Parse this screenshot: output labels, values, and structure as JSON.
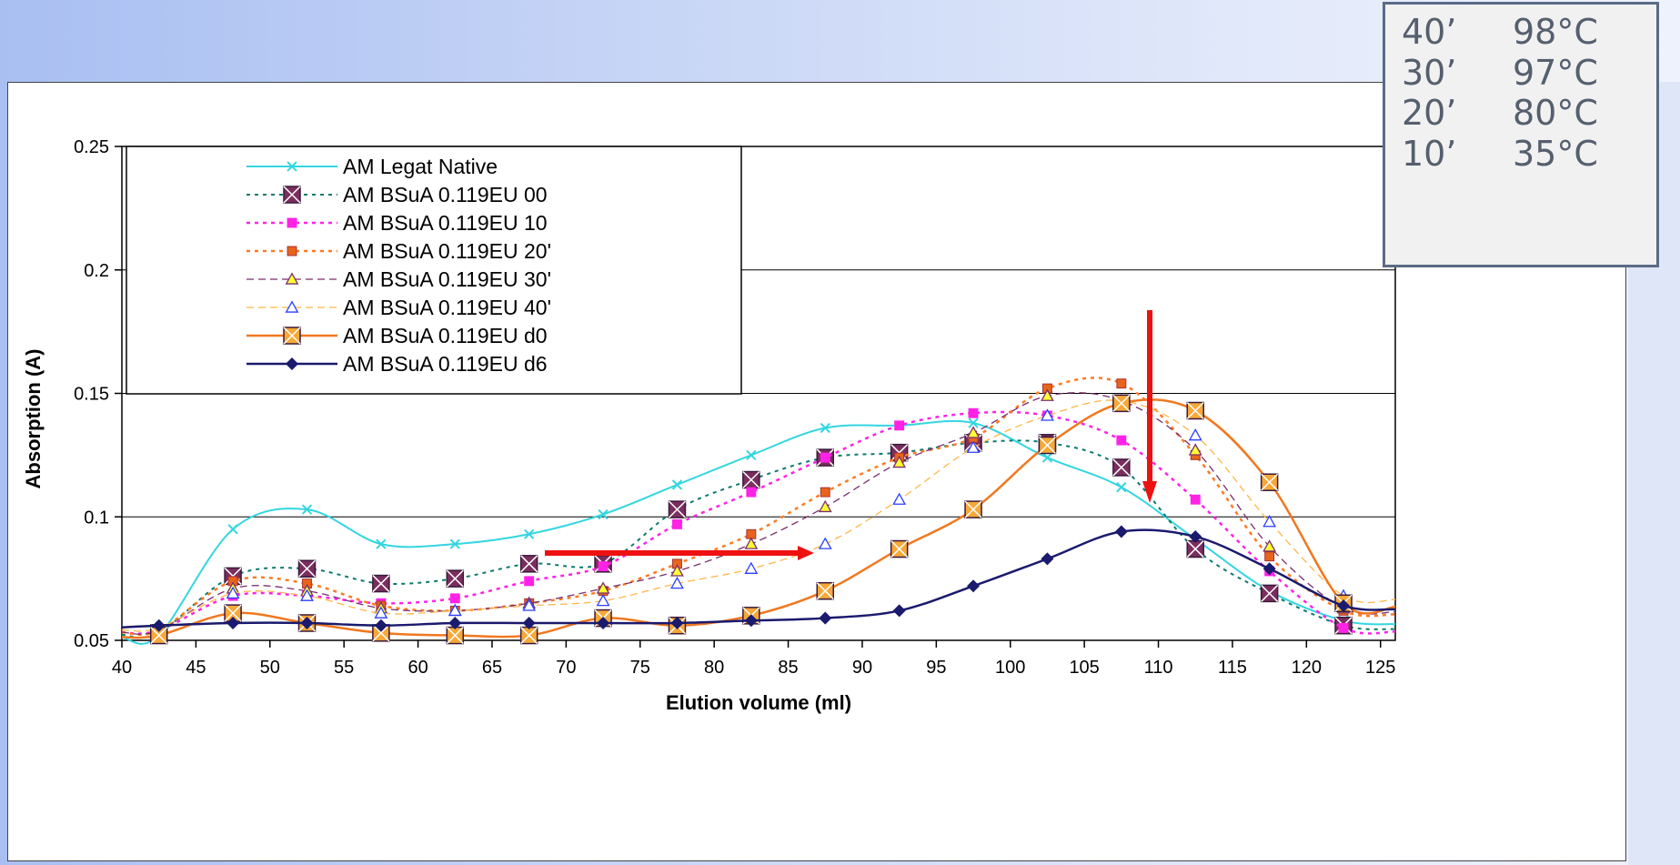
{
  "chart_data": {
    "type": "line",
    "xlabel": "Elution volume (ml)",
    "ylabel": "Absorption (A)",
    "xlim": [
      40,
      126
    ],
    "ylim": [
      0.05,
      0.25
    ],
    "xticks": [
      40,
      45,
      50,
      55,
      60,
      65,
      70,
      75,
      80,
      85,
      90,
      95,
      100,
      105,
      110,
      115,
      120,
      125
    ],
    "xtick_labels": [
      "40",
      "45",
      "50",
      "55",
      "60",
      "65",
      "70",
      "75",
      "80",
      "85",
      "90",
      "95",
      "100",
      "105",
      "110",
      "115",
      "120",
      "125"
    ],
    "yticks": [
      0.05,
      0.1,
      0.15,
      0.2,
      0.25
    ],
    "ytick_labels": [
      "0.05",
      "0.1",
      "0.15",
      "0.2",
      "0.25"
    ],
    "grid": "horizontal",
    "legend_position": "top-left",
    "x": [
      42.5,
      47.5,
      52.5,
      57.5,
      62.5,
      67.5,
      72.5,
      77.5,
      82.5,
      87.5,
      92.5,
      97.5,
      102.5,
      107.5,
      112.5,
      117.5,
      122.5
    ],
    "series": [
      {
        "name": "AM Legat Native",
        "color": "#33d6e0",
        "marker": "x",
        "dash": "solid",
        "stroke": 2,
        "values": [
          0.052,
          0.095,
          0.103,
          0.089,
          0.089,
          0.093,
          0.101,
          0.113,
          0.125,
          0.136,
          0.137,
          0.138,
          0.124,
          0.112,
          0.091,
          0.07,
          0.058
        ]
      },
      {
        "name": "AM BSuA 0.119EU 00",
        "color": "#0a7a6e",
        "marker": "square-x",
        "marker_fill": "#7a2e5e",
        "dash": "dotted",
        "stroke": 2,
        "values": [
          0.053,
          0.076,
          0.079,
          0.073,
          0.075,
          0.081,
          0.081,
          0.103,
          0.115,
          0.124,
          0.126,
          0.13,
          0.13,
          0.12,
          0.087,
          0.069,
          0.056
        ]
      },
      {
        "name": "AM BSuA 0.119EU 10",
        "color": "#ff22e6",
        "marker": "square",
        "marker_fill": "#ff22e6",
        "dash": "dotted",
        "stroke": 2.5,
        "values": [
          0.054,
          0.068,
          0.068,
          0.065,
          0.067,
          0.074,
          0.08,
          0.097,
          0.11,
          0.124,
          0.137,
          0.142,
          0.141,
          0.131,
          0.107,
          0.078,
          0.055
        ]
      },
      {
        "name": "AM BSuA 0.119EU 20'",
        "color": "#ff7a20",
        "marker": "square",
        "marker_fill": "#e8641a",
        "dash": "dotted",
        "stroke": 2.5,
        "values": [
          0.054,
          0.074,
          0.073,
          0.064,
          0.062,
          0.065,
          0.07,
          0.081,
          0.093,
          0.11,
          0.124,
          0.132,
          0.152,
          0.154,
          0.125,
          0.084,
          0.062
        ]
      },
      {
        "name": "AM BSuA 0.119EU 30'",
        "color": "#7a2e6e",
        "marker": "triangle",
        "marker_fill": "#ffff33",
        "dash": "dashed",
        "stroke": 1.3,
        "values": [
          0.054,
          0.071,
          0.07,
          0.063,
          0.062,
          0.065,
          0.071,
          0.078,
          0.089,
          0.104,
          0.122,
          0.134,
          0.149,
          0.147,
          0.127,
          0.088,
          0.063
        ]
      },
      {
        "name": "AM BSuA 0.119EU 40'",
        "color": "#ffb64a",
        "marker": "triangle",
        "marker_fill": "#ffffff",
        "marker_stroke": "#2a3fff",
        "dash": "dashed",
        "stroke": 1.3,
        "values": [
          0.055,
          0.069,
          0.068,
          0.061,
          0.062,
          0.064,
          0.066,
          0.073,
          0.079,
          0.089,
          0.107,
          0.128,
          0.141,
          0.147,
          0.133,
          0.098,
          0.068
        ]
      },
      {
        "name": "AM BSuA 0.119EU d0",
        "color": "#f07820",
        "marker": "square-x",
        "marker_fill": "#f7a838",
        "dash": "solid",
        "stroke": 2.5,
        "values": [
          0.052,
          0.061,
          0.057,
          0.053,
          0.052,
          0.052,
          0.059,
          0.056,
          0.06,
          0.07,
          0.087,
          0.103,
          0.129,
          0.146,
          0.143,
          0.114,
          0.065
        ]
      },
      {
        "name": "AM BSuA 0.119EU d6",
        "color": "#1a1a6e",
        "marker": "diamond",
        "marker_fill": "#1a1a6e",
        "dash": "solid",
        "stroke": 2.5,
        "values": [
          0.056,
          0.057,
          0.057,
          0.056,
          0.057,
          0.057,
          0.057,
          0.057,
          0.058,
          0.059,
          0.062,
          0.072,
          0.083,
          0.094,
          0.092,
          0.079,
          0.064
        ]
      }
    ]
  },
  "legend_temps": [
    {
      "time": "40’",
      "temp": "98°C"
    },
    {
      "time": "30’",
      "temp": "97°C"
    },
    {
      "time": "20’",
      "temp": "80°C"
    },
    {
      "time": "10’",
      "temp": "35°C"
    }
  ]
}
